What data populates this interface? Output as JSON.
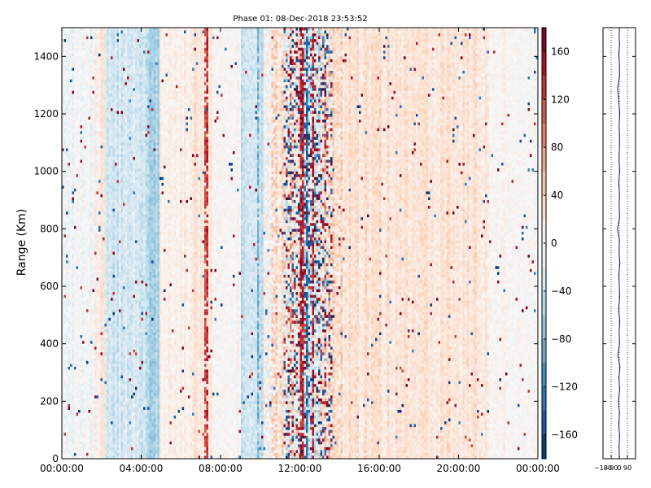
{
  "chart_data": [
    {
      "type": "heatmap",
      "title": "Phase 01: 08-Dec-2018 23:53:52",
      "xlabel": "",
      "ylabel": "Range (Km)",
      "xlim": [
        "00:00:00",
        "00:00:00"
      ],
      "ylim": [
        0,
        1500
      ],
      "x_tick_labels": [
        "00:00:00",
        "04:00:00",
        "08:00:00",
        "12:00:00",
        "16:00:00",
        "20:00:00",
        "00:00:00"
      ],
      "x_tick_hours": [
        0,
        4,
        8,
        12,
        16,
        20,
        24
      ],
      "y_ticks": [
        0,
        200,
        400,
        600,
        800,
        1000,
        1200,
        1400
      ],
      "colorbar": {
        "colormap": "RdBu_r",
        "range": [
          -180,
          180
        ],
        "ticks": [
          160,
          120,
          80,
          40,
          0,
          -40,
          -80,
          -120,
          -160
        ],
        "tick_labels": [
          "160",
          "120",
          "80",
          "40",
          "0",
          "−40",
          "−80",
          "−120",
          "−160"
        ]
      },
      "grid": false,
      "column_bands": [
        {
          "from_hour": 0.0,
          "to_hour": 1.6,
          "mean": -8,
          "spread": 25
        },
        {
          "from_hour": 1.6,
          "to_hour": 2.2,
          "mean": 18,
          "spread": 25
        },
        {
          "from_hour": 2.2,
          "to_hour": 4.2,
          "mean": -30,
          "spread": 30
        },
        {
          "from_hour": 4.2,
          "to_hour": 4.9,
          "mean": -55,
          "spread": 30
        },
        {
          "from_hour": 4.9,
          "to_hour": 6.6,
          "mean": 10,
          "spread": 22
        },
        {
          "from_hour": 6.6,
          "to_hour": 7.6,
          "mean": 25,
          "spread": 25
        },
        {
          "from_hour": 7.6,
          "to_hour": 9.0,
          "mean": 5,
          "spread": 22
        },
        {
          "from_hour": 9.0,
          "to_hour": 10.2,
          "mean": -40,
          "spread": 30
        },
        {
          "from_hour": 10.2,
          "to_hour": 11.2,
          "mean": 15,
          "spread": 60
        },
        {
          "from_hour": 11.2,
          "to_hour": 13.6,
          "mean": 10,
          "spread": 110
        },
        {
          "from_hour": 13.6,
          "to_hour": 14.3,
          "mean": 30,
          "spread": 50
        },
        {
          "from_hour": 14.3,
          "to_hour": 17.5,
          "mean": 25,
          "spread": 30
        },
        {
          "from_hour": 17.5,
          "to_hour": 21.5,
          "mean": 22,
          "spread": 28
        },
        {
          "from_hour": 21.5,
          "to_hour": 24.0,
          "mean": 4,
          "spread": 20
        }
      ],
      "vertical_streaks": [
        {
          "hour": 7.2,
          "value": 140
        },
        {
          "hour": 7.3,
          "value": 160
        },
        {
          "hour": 9.9,
          "value": -100
        },
        {
          "hour": 12.1,
          "value": 170
        },
        {
          "hour": 12.4,
          "value": -170
        },
        {
          "hour": 12.7,
          "value": 170
        }
      ]
    },
    {
      "type": "line",
      "title": "",
      "xlabel": "",
      "ylabel": "",
      "x_tick_labels": [
        "−180",
        "−90",
        "0",
        "90"
      ],
      "x_ticks": [
        -180,
        -90,
        0,
        90
      ],
      "xlim": [
        -180,
        180
      ],
      "ylim": [
        0,
        1500
      ],
      "grid": "dotted vertical",
      "series": [
        {
          "color": "#1a1aa0",
          "x": [
            2,
            -3,
            4,
            -6,
            3,
            -10,
            5,
            -4,
            8,
            -15,
            3,
            -2,
            6,
            -8,
            4,
            1,
            -5,
            7,
            -3,
            2,
            -20,
            4,
            -2,
            3,
            -6,
            5,
            -3,
            1,
            4,
            -2,
            6,
            -4,
            -18,
            3,
            2,
            -5,
            4,
            -2,
            3
          ],
          "y": [
            0,
            40,
            80,
            120,
            160,
            200,
            240,
            280,
            320,
            360,
            400,
            440,
            480,
            520,
            560,
            600,
            640,
            680,
            720,
            760,
            800,
            840,
            880,
            920,
            960,
            1000,
            1040,
            1080,
            1120,
            1160,
            1200,
            1240,
            1290,
            1330,
            1370,
            1410,
            1440,
            1470,
            1500
          ]
        }
      ]
    }
  ]
}
